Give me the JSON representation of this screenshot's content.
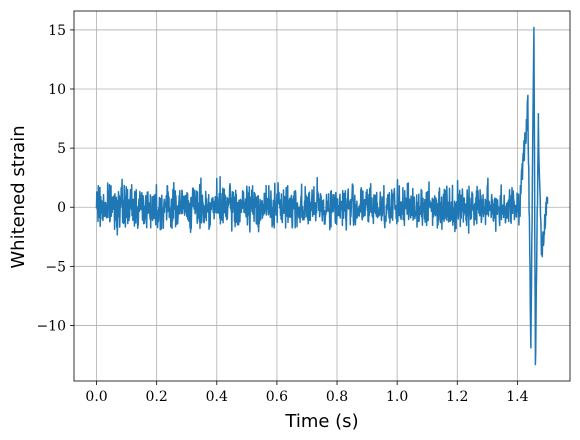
{
  "chart_data": {
    "type": "line",
    "xlabel": "Time (s)",
    "ylabel": "Whitened strain",
    "xlim": [
      -0.075,
      1.575
    ],
    "ylim": [
      -14.7,
      16.6
    ],
    "xticks": [
      0.0,
      0.2,
      0.4,
      0.6,
      0.8,
      1.0,
      1.2,
      1.4
    ],
    "xtick_labels": [
      "0.0",
      "0.2",
      "0.4",
      "0.6",
      "0.8",
      "1.0",
      "1.2",
      "1.4"
    ],
    "yticks": [
      -10,
      -5,
      0,
      5,
      10,
      15
    ],
    "ytick_labels": [
      "−10",
      "−5",
      "0",
      "5",
      "10",
      "15"
    ],
    "grid": true,
    "x_range": [
      0.0,
      1.5
    ],
    "noise_band": [
      -2.5,
      2.8
    ],
    "key_points": [
      {
        "x": 0.0,
        "y": 0.0
      },
      {
        "x": 1.41,
        "y": 1.5
      },
      {
        "x": 1.435,
        "y": 8.4
      },
      {
        "x": 1.445,
        "y": -11.3
      },
      {
        "x": 1.455,
        "y": 15.2
      },
      {
        "x": 1.46,
        "y": -13.3
      },
      {
        "x": 1.47,
        "y": 7.2
      },
      {
        "x": 1.48,
        "y": -4.0
      },
      {
        "x": 1.5,
        "y": 0.3
      }
    ],
    "series": [
      {
        "color": "#1f77b4"
      }
    ]
  }
}
